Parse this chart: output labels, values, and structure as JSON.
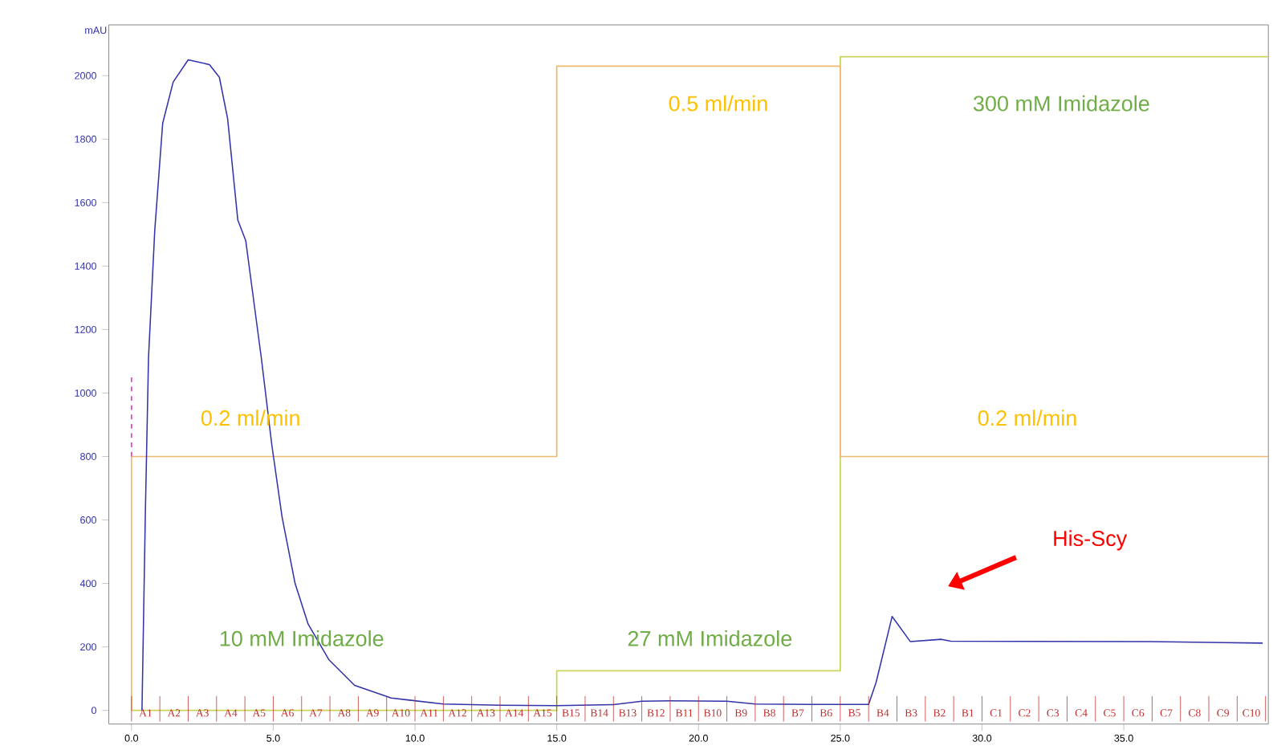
{
  "chart_data": {
    "type": "line",
    "ylabel": "mAU",
    "xlim": [
      -0.8,
      40.1
    ],
    "ylim": [
      -43,
      2160
    ],
    "xticks": [
      {
        "value": 0,
        "label": "0.0"
      },
      {
        "value": 5,
        "label": "5.0"
      },
      {
        "value": 10,
        "label": "10.0"
      },
      {
        "value": 15,
        "label": "15.0"
      },
      {
        "value": 20,
        "label": "20.0"
      },
      {
        "value": 25,
        "label": "25.0"
      },
      {
        "value": 30,
        "label": "30.0"
      },
      {
        "value": 35,
        "label": "35.0"
      }
    ],
    "yticks": [
      0,
      200,
      400,
      600,
      800,
      1000,
      1200,
      1400,
      1600,
      1800,
      2000
    ],
    "grid": false,
    "marker": "none",
    "series": [
      {
        "type": "line",
        "color": "#c8d45a",
        "line_style": "solid",
        "x": [
          0,
          15,
          15,
          25,
          25,
          40.1
        ],
        "values": [
          0,
          0,
          125,
          125,
          2060,
          2060
        ]
      },
      {
        "type": "line",
        "color": "#f0b870",
        "line_style": "solid",
        "x": [
          0,
          0,
          15,
          15,
          25,
          25,
          40.1
        ],
        "values": [
          0,
          800,
          800,
          2030,
          2030,
          800,
          800
        ]
      },
      {
        "type": "line",
        "color": "#dd44cc",
        "line_style": "dashed",
        "x": [
          0,
          0
        ],
        "values": [
          800,
          1050
        ]
      },
      {
        "type": "line",
        "color": "#3333aa",
        "line_style": "solid",
        "x": [
          0.37,
          0.49,
          0.6,
          0.82,
          1.1,
          1.47,
          2.0,
          2.75,
          3.1,
          3.39,
          3.75,
          4.03,
          4.58,
          4.95,
          5.31,
          5.77,
          6.23,
          6.96,
          7.87,
          9.16,
          11,
          13,
          15,
          17,
          18,
          19,
          21,
          22,
          24,
          26.0,
          26.26,
          26.37,
          26.83,
          27.47,
          28.57,
          28.9,
          35.9,
          39.9
        ],
        "values": [
          0,
          628,
          1111,
          1512,
          1850,
          1980,
          2050,
          2035,
          1995,
          1865,
          1545,
          1480,
          1110,
          836,
          610,
          400,
          272,
          160,
          79,
          39,
          20,
          16,
          15,
          18,
          29,
          30,
          29,
          20,
          19,
          19,
          87,
          127,
          296,
          217,
          224,
          218,
          217,
          212
        ]
      }
    ],
    "annotations": [
      "0.2 ml/min",
      "0.5 ml/min",
      "300 mM Imidazole",
      "0.2 ml/min",
      "10 mM Imidazole",
      "27 mM Imidazole",
      "His-Scy",
      "A1",
      "A2",
      "A3",
      "A4",
      "A5",
      "A6",
      "A7",
      "A8",
      "A9",
      "A10",
      "A11",
      "A12",
      "A13",
      "A14",
      "A15",
      "B15",
      "B14",
      "B13",
      "B12",
      "B11",
      "B10",
      "B9",
      "B8",
      "B7",
      "B6",
      "B5",
      "B4",
      "B3",
      "B2",
      "B1",
      "C1",
      "C2",
      "C3",
      "C4",
      "C5",
      "C6",
      "C7",
      "C8",
      "C9",
      "C10"
    ]
  }
}
